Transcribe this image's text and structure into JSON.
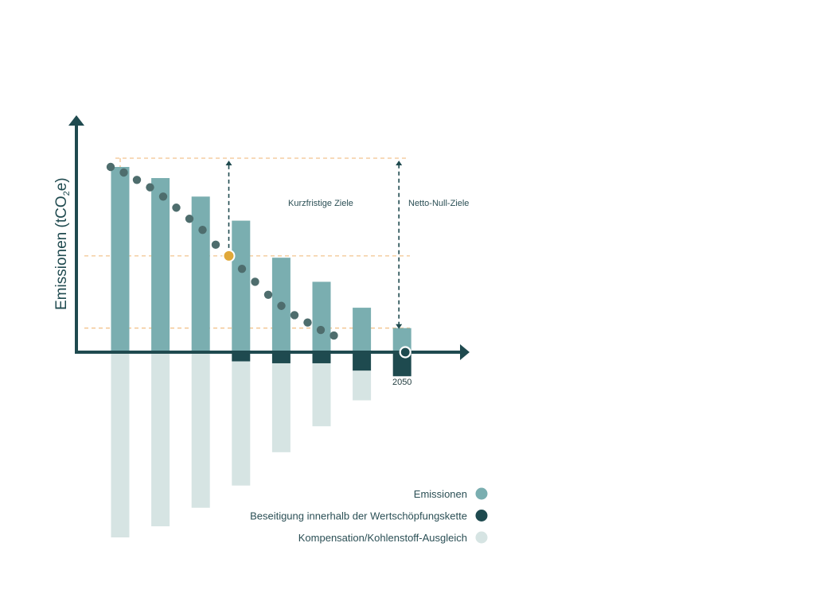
{
  "chart_data": {
    "type": "bar",
    "ylabel_main": "Emissionen (tCO",
    "ylabel_sub": "2",
    "ylabel_end": "e)",
    "categories": [
      "",
      "",
      "",
      "",
      "",
      "",
      "",
      "2050"
    ],
    "series": [
      {
        "name": "Emissionen",
        "color": "#7aaeb0",
        "values": [
          100,
          94,
          84,
          71,
          51,
          38,
          24,
          13
        ]
      },
      {
        "name": "Beseitigung innerhalb der Wertschöpfungskette",
        "color": "#1e4a4f",
        "values": [
          0,
          0,
          0,
          -5,
          -6,
          -6,
          -10,
          -13
        ]
      },
      {
        "name": "Kompensation/Kohlenstoff-Ausgleich",
        "color": "#d6e4e3",
        "values": [
          -100,
          -94,
          -84,
          -67,
          -48,
          -34,
          -16,
          0
        ]
      }
    ],
    "trajectory": [
      100,
      97,
      93,
      89,
      84,
      78,
      72,
      66,
      58,
      52,
      45,
      38,
      31,
      25,
      20,
      16,
      12,
      9
    ],
    "trajectory_color": "#4e6d6d",
    "milestone_index": 9,
    "milestone_color": "#e0a83a",
    "guide_color": "#f2c48f",
    "axis_color": "#1f4a4f",
    "annotations": {
      "short_term": "Kurzfristige Ziele",
      "net_zero": "Netto-Null-Ziele"
    },
    "legend_placement": "bottom-right"
  }
}
